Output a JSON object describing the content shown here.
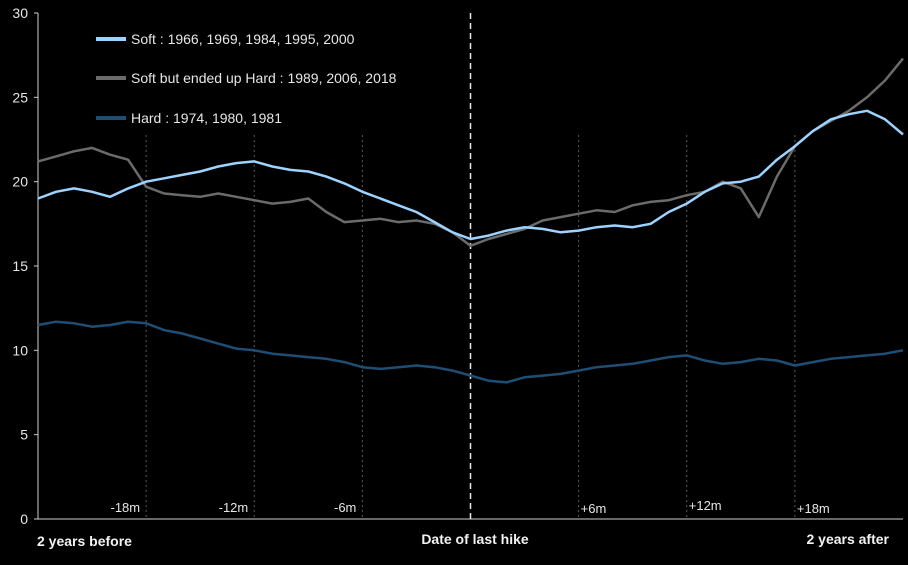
{
  "chart_data": {
    "type": "line",
    "ylim": [
      0,
      30
    ],
    "y_ticks": [
      "0",
      "5",
      "10",
      "15",
      "20",
      "25",
      "30"
    ],
    "grid": false,
    "legend_position": "top-left",
    "x_labels": {
      "left": "2 years before",
      "center": "Date of last hike",
      "right": "2 years after"
    },
    "period_markers": [
      {
        "label": "-18m",
        "month": -18
      },
      {
        "label": "-12m",
        "month": -12
      },
      {
        "label": "-6m",
        "month": -6
      },
      {
        "label": "+6m",
        "month": 6
      },
      {
        "label": "+12m",
        "month": 12
      },
      {
        "label": "+18m",
        "month": 18
      }
    ],
    "x": [
      -24,
      -23,
      -22,
      -21,
      -20,
      -19,
      -18,
      -17,
      -16,
      -15,
      -14,
      -13,
      -12,
      -11,
      -10,
      -9,
      -8,
      -7,
      -6,
      -5,
      -4,
      -3,
      -2,
      -1,
      0,
      1,
      2,
      3,
      4,
      5,
      6,
      7,
      8,
      9,
      10,
      11,
      12,
      13,
      14,
      15,
      16,
      17,
      18,
      19,
      20,
      21,
      22,
      23,
      24
    ],
    "series": [
      {
        "name": "Soft : 1966, 1969, 1984, 1995, 2000",
        "color": "#9dd3ff",
        "values": [
          19.0,
          19.4,
          19.6,
          19.4,
          19.1,
          19.6,
          20.0,
          20.2,
          20.4,
          20.6,
          20.9,
          21.1,
          21.2,
          20.9,
          20.7,
          20.6,
          20.3,
          19.9,
          19.4,
          19.0,
          18.6,
          18.2,
          17.6,
          17.0,
          16.6,
          16.8,
          17.1,
          17.3,
          17.2,
          17.0,
          17.1,
          17.3,
          17.4,
          17.3,
          17.5,
          18.2,
          18.7,
          19.4,
          19.9,
          20.0,
          20.3,
          21.3,
          22.1,
          23.0,
          23.7,
          24.0,
          24.2,
          23.7,
          22.8
        ]
      },
      {
        "name": "Soft but ended up Hard : 1989, 2006, 2018",
        "color": "#6b6b6b",
        "values": [
          21.2,
          21.5,
          21.8,
          22.0,
          21.6,
          21.3,
          19.7,
          19.3,
          19.2,
          19.1,
          19.3,
          19.1,
          18.9,
          18.7,
          18.8,
          19.0,
          18.2,
          17.6,
          17.7,
          17.8,
          17.6,
          17.7,
          17.5,
          17.0,
          16.2,
          16.6,
          16.9,
          17.2,
          17.7,
          17.9,
          18.1,
          18.3,
          18.2,
          18.6,
          18.8,
          18.9,
          19.2,
          19.4,
          20.0,
          19.6,
          17.9,
          20.3,
          22.1,
          23.0,
          23.6,
          24.2,
          25.0,
          26.0,
          27.3
        ]
      },
      {
        "name": "Hard : 1974, 1980, 1981",
        "color": "#1f4e74",
        "values": [
          11.5,
          11.7,
          11.6,
          11.4,
          11.5,
          11.7,
          11.6,
          11.2,
          11.0,
          10.7,
          10.4,
          10.1,
          10.0,
          9.8,
          9.7,
          9.6,
          9.5,
          9.3,
          9.0,
          8.9,
          9.0,
          9.1,
          9.0,
          8.8,
          8.5,
          8.2,
          8.1,
          8.4,
          8.5,
          8.6,
          8.8,
          9.0,
          9.1,
          9.2,
          9.4,
          9.6,
          9.7,
          9.4,
          9.2,
          9.3,
          9.5,
          9.4,
          9.1,
          9.3,
          9.5,
          9.6,
          9.7,
          9.8,
          10.0
        ]
      }
    ]
  }
}
